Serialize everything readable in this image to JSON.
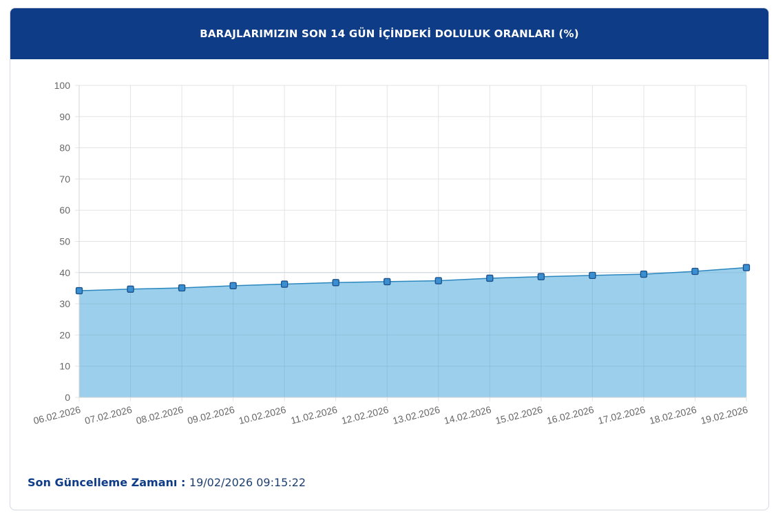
{
  "header": {
    "title": "BARAJLARIMIZIN SON 14 GÜN İÇİNDEKİ DOLULUK ORANLARI (%)"
  },
  "footer": {
    "label": "Son Güncelleme Zamanı : ",
    "value": "19/02/2026 09:15:22"
  },
  "colors": {
    "header_bg": "#0e3c86",
    "area_fill": "#9bcfeb",
    "line": "#2a86bf",
    "point_fill": "#3a8fd0",
    "point_stroke": "#1b4f8a",
    "grid": "#e3e3e3"
  },
  "chart_data": {
    "type": "area",
    "title": "BARAJLARIMIZIN SON 14 GÜN İÇİNDEKİ DOLULUK ORANLARI (%)",
    "xlabel": "",
    "ylabel": "",
    "categories": [
      "06.02.2026",
      "07.02.2026",
      "08.02.2026",
      "09.02.2026",
      "10.02.2026",
      "11.02.2026",
      "12.02.2026",
      "13.02.2026",
      "14.02.2026",
      "15.02.2026",
      "16.02.2026",
      "17.02.2026",
      "18.02.2026",
      "19.02.2026"
    ],
    "series": [
      {
        "values": [
          34.2,
          34.7,
          35.1,
          35.8,
          36.3,
          36.8,
          37.1,
          37.4,
          38.2,
          38.7,
          39.1,
          39.5,
          40.4,
          41.6
        ]
      }
    ],
    "ylim": [
      0,
      100
    ],
    "yticks": [
      0,
      10,
      20,
      30,
      40,
      50,
      60,
      70,
      80,
      90,
      100
    ],
    "grid": true,
    "legend": "none"
  }
}
